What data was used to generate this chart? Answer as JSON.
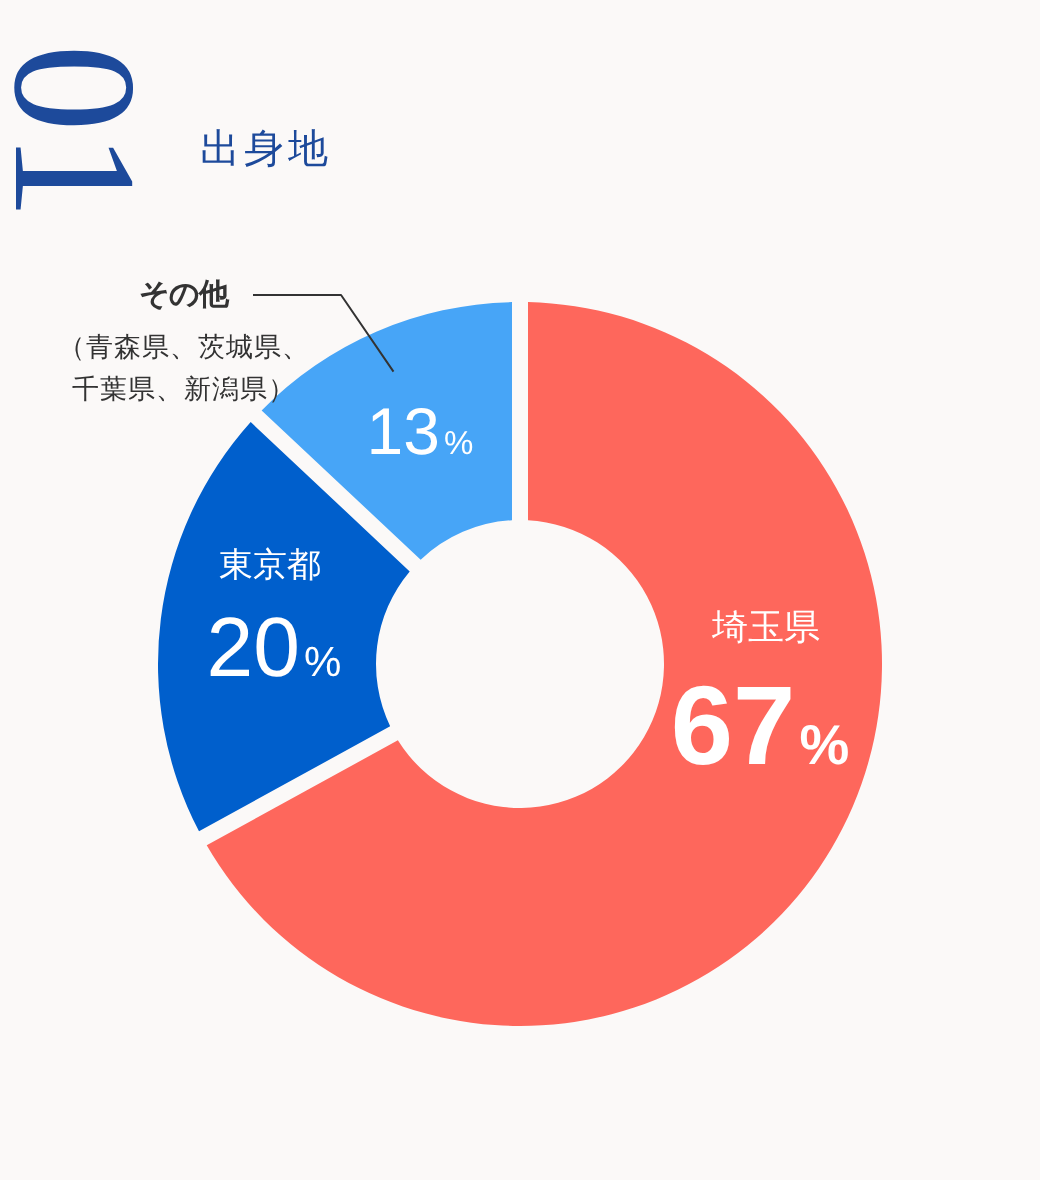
{
  "chart_data": {
    "type": "donut",
    "title": "出身地",
    "categories": [
      "埼玉県",
      "東京都",
      "その他（青森県、茨城県、千葉県、新潟県）"
    ],
    "values": [
      67,
      20,
      13
    ],
    "colors": [
      "#fe675c",
      "#005fcc",
      "#47a5f7"
    ],
    "value_labels": [
      "67%",
      "20%",
      "13%"
    ],
    "annotations": [
      "01"
    ]
  }
}
